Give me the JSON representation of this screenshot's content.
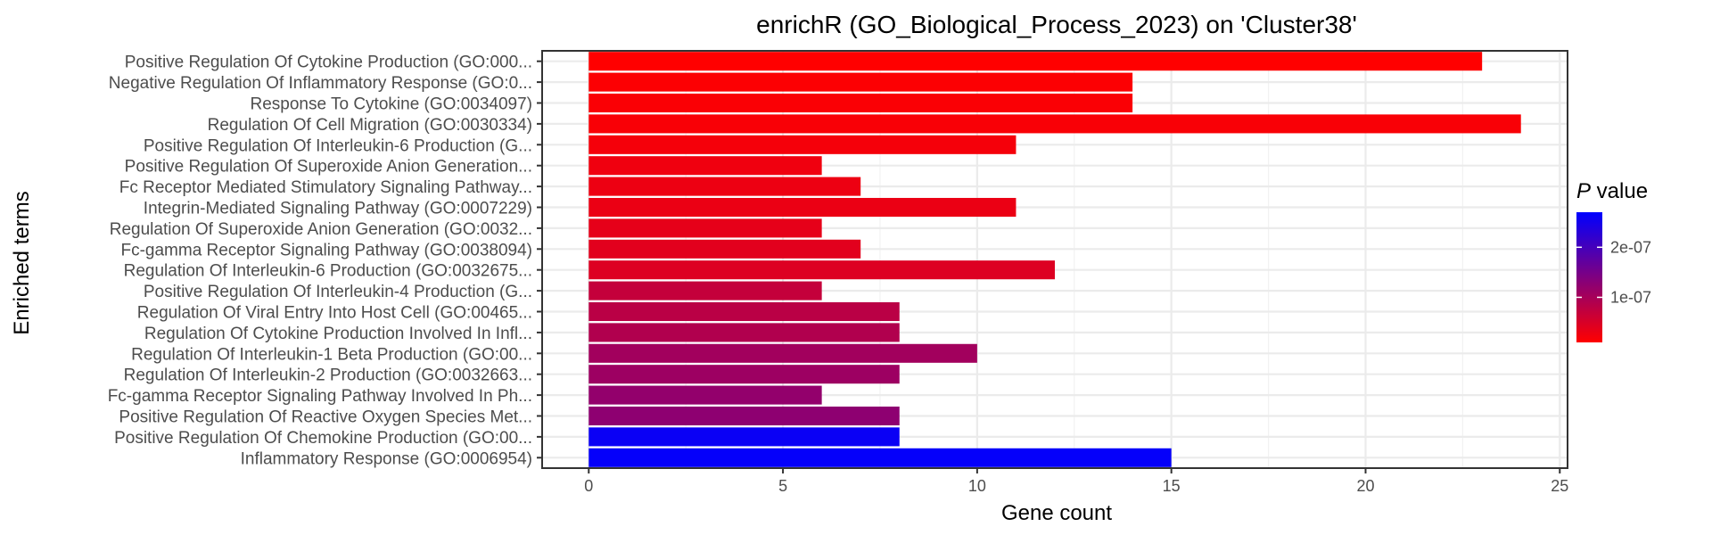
{
  "chart_data": {
    "type": "bar",
    "orientation": "horizontal",
    "title": "enrichR (GO_Biological_Process_2023) on 'Cluster38'",
    "xlabel": "Gene count",
    "ylabel": "Enriched terms",
    "xlim": [
      -1.2,
      25.2
    ],
    "xticks": [
      0,
      5,
      10,
      15,
      20,
      25
    ],
    "grid": true,
    "categories": [
      "Positive Regulation Of Cytokine Production (GO:000...",
      "Negative Regulation Of Inflammatory Response (GO:0...",
      "Response To Cytokine (GO:0034097)",
      "Regulation Of Cell Migration (GO:0030334)",
      "Positive Regulation Of Interleukin-6 Production (G...",
      "Positive Regulation Of Superoxide Anion Generation...",
      "Fc Receptor Mediated Stimulatory Signaling Pathway...",
      "Integrin-Mediated Signaling Pathway (GO:0007229)",
      "Regulation Of Superoxide Anion Generation (GO:0032...",
      "Fc-gamma Receptor Signaling Pathway (GO:0038094)",
      "Regulation Of Interleukin-6 Production (GO:0032675...",
      "Positive Regulation Of Interleukin-4 Production (G...",
      "Regulation Of Viral Entry Into Host Cell (GO:00465...",
      "Regulation Of Cytokine Production Involved In Infl...",
      "Regulation Of Interleukin-1 Beta Production (GO:00...",
      "Regulation Of Interleukin-2 Production (GO:0032663...",
      "Fc-gamma Receptor Signaling Pathway Involved In Ph...",
      "Positive Regulation Of Reactive Oxygen Species Met...",
      "Positive Regulation Of Chemokine Production (GO:00...",
      "Inflammatory Response (GO:0006954)"
    ],
    "values": [
      23,
      14,
      14,
      24,
      11,
      6,
      7,
      11,
      6,
      7,
      12,
      6,
      8,
      8,
      10,
      8,
      6,
      8,
      8,
      15
    ],
    "p_values": [
      1e-08,
      1.3e-08,
      1.5e-08,
      1.6e-08,
      2e-08,
      2.5e-08,
      2.8e-08,
      3e-08,
      3.5e-08,
      4e-08,
      4.5e-08,
      7e-08,
      8e-08,
      9e-08,
      1.05e-07,
      1.1e-07,
      1.2e-07,
      1.25e-07,
      2.6e-07,
      2.65e-07
    ],
    "legend": {
      "title_italic": "P",
      "title_rest": " value",
      "placement": "right",
      "color_low": "#ff0000",
      "color_high": "#0000ff",
      "range": [
        1e-08,
        2.7e-07
      ],
      "ticks": [
        1e-07,
        2e-07
      ],
      "tick_labels": [
        "1e-07",
        "2e-07"
      ]
    },
    "colors": {
      "panel_border": "#333333",
      "grid_major": "#ebebeb",
      "grid_minor": "#f2f2f2",
      "tick": "#333333"
    }
  }
}
